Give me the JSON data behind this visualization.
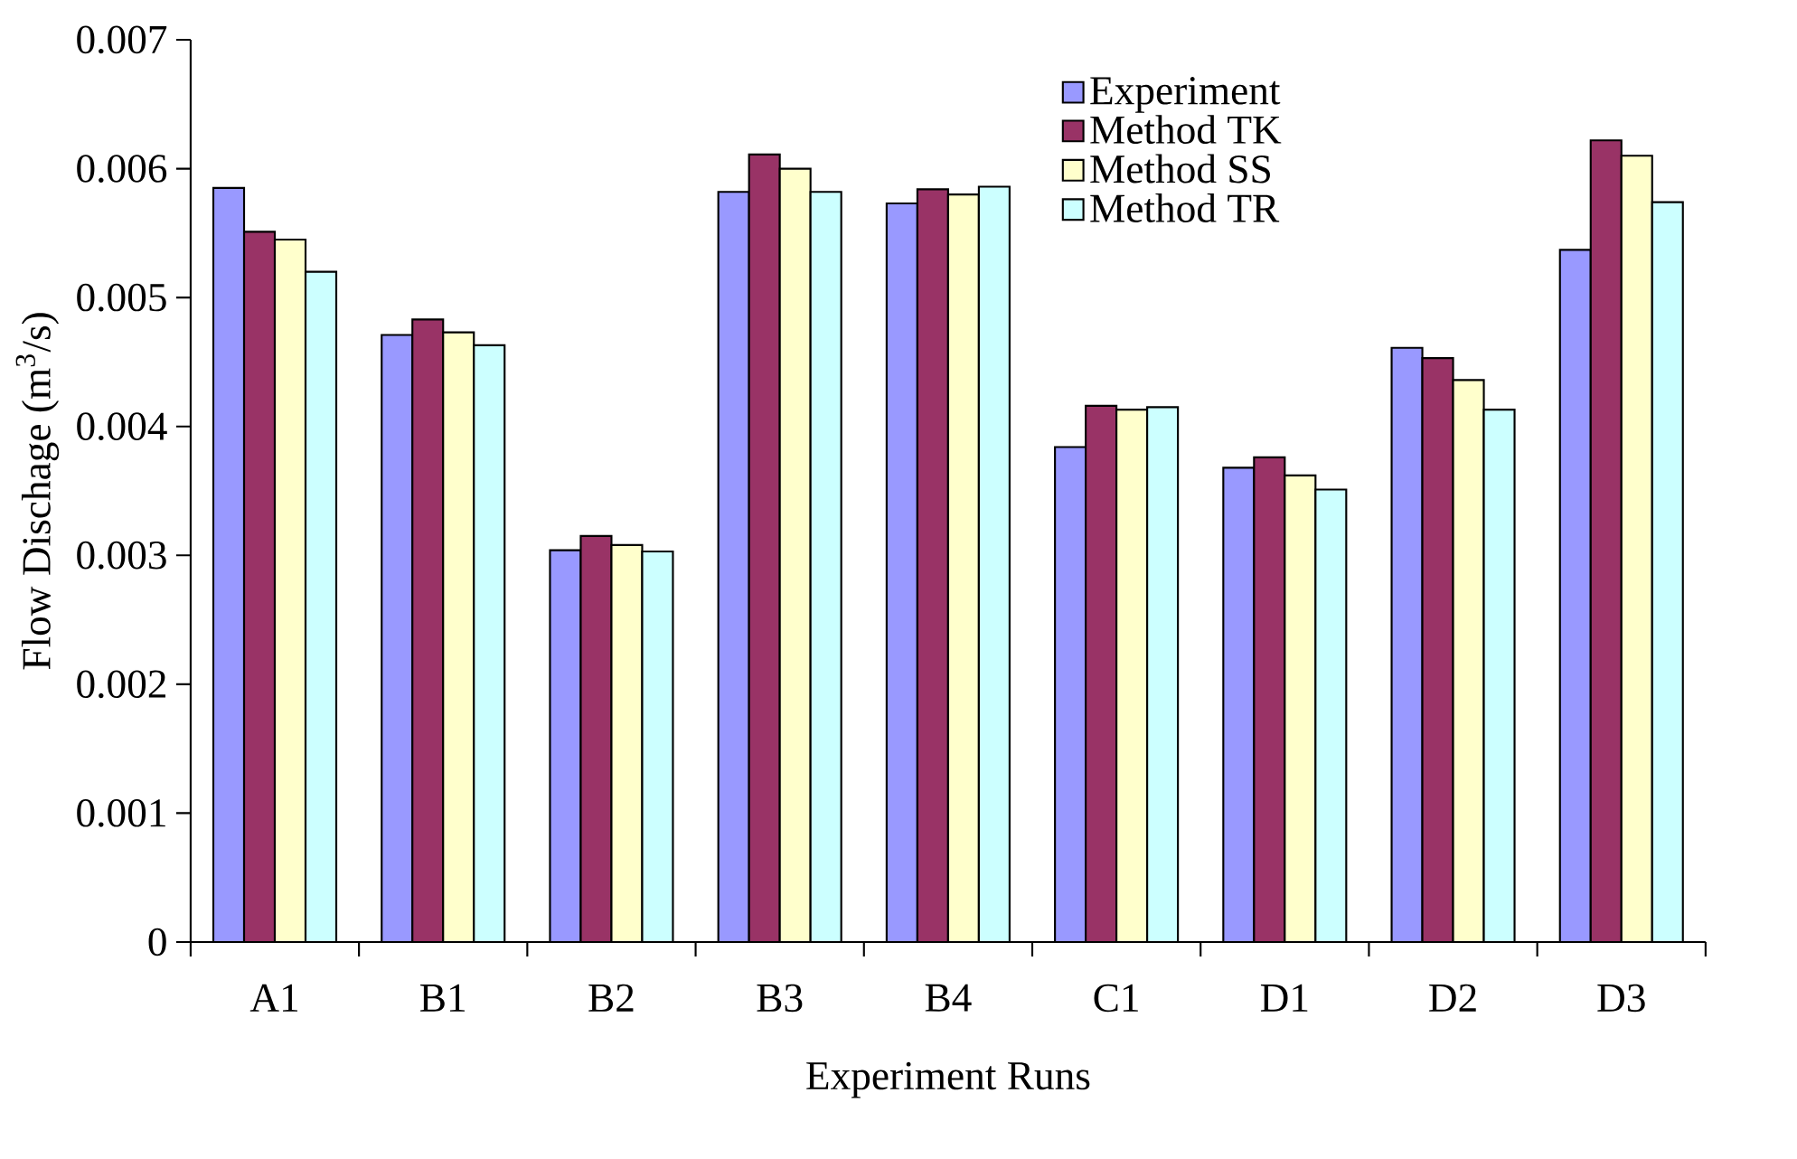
{
  "chart_data": {
    "type": "bar",
    "xlabel": "Experiment Runs",
    "ylabel": "Flow Dischage (m$^{3}$/s)",
    "categories": [
      "A1",
      "B1",
      "B2",
      "B3",
      "B4",
      "C1",
      "D1",
      "D2",
      "D3"
    ],
    "series": [
      {
        "name": "Experiment",
        "color": "#9999ff",
        "values": [
          0.00585,
          0.00471,
          0.00304,
          0.00582,
          0.00573,
          0.00384,
          0.00368,
          0.00461,
          0.00537
        ]
      },
      {
        "name": "Method TK",
        "color": "#993366",
        "values": [
          0.00551,
          0.00483,
          0.00315,
          0.00611,
          0.00584,
          0.00416,
          0.00376,
          0.00453,
          0.00622
        ]
      },
      {
        "name": "Method SS",
        "color": "#ffffcc",
        "values": [
          0.00545,
          0.00473,
          0.00308,
          0.006,
          0.0058,
          0.00413,
          0.00362,
          0.00436,
          0.0061
        ]
      },
      {
        "name": "Method TR",
        "color": "#ccffff",
        "values": [
          0.0052,
          0.00463,
          0.00303,
          0.00582,
          0.00586,
          0.00415,
          0.00351,
          0.00413,
          0.00574
        ]
      }
    ],
    "ylim": [
      0,
      0.007
    ],
    "yticks": [
      0,
      0.001,
      0.002,
      0.003,
      0.004,
      0.005,
      0.006,
      0.007
    ],
    "legend": "top right"
  }
}
